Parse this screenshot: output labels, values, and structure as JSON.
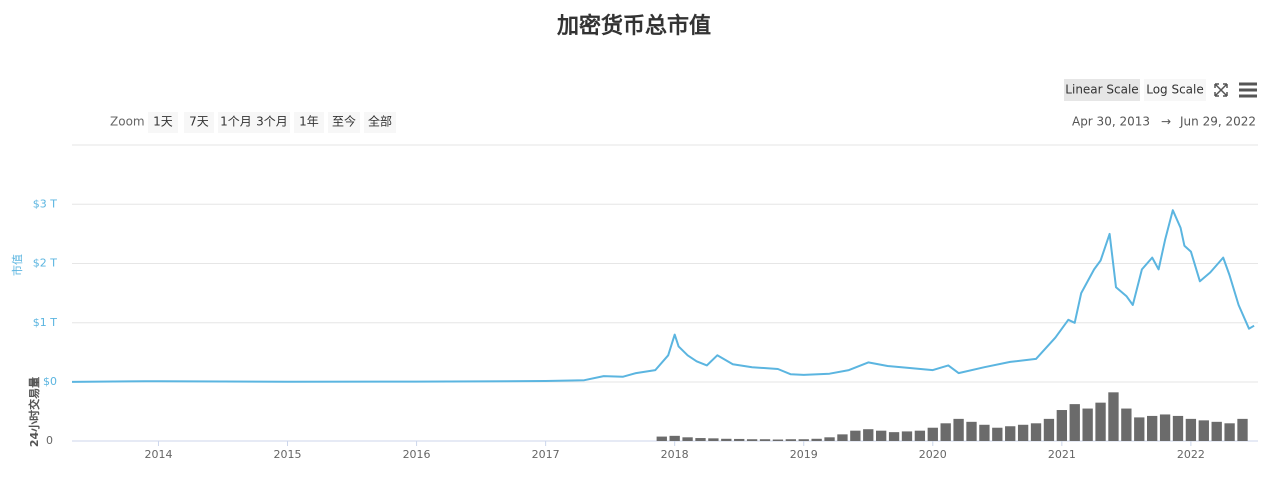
{
  "chart_data": {
    "type": "line",
    "title": "加密货币总市值",
    "scale_buttons": [
      "Linear Scale",
      "Log Scale"
    ],
    "active_scale": 0,
    "range_selector": {
      "label": "Zoom",
      "buttons": [
        "1天",
        "7天",
        "1个月",
        "3个月",
        "1年",
        "至今",
        "全部"
      ]
    },
    "date_range": [
      "Apr 30, 2013",
      "Jun 29, 2022"
    ],
    "ylabel": "市值",
    "y2label": "24小时交易量",
    "xlim": [
      2013.33,
      2022.52
    ],
    "xticks": [
      2014,
      2015,
      2016,
      2017,
      2018,
      2019,
      2020,
      2021,
      2022
    ],
    "ylim": [
      0,
      4
    ],
    "yticks": [
      {
        "value": 0,
        "label": "$0"
      },
      {
        "value": 1,
        "label": "$1 T"
      },
      {
        "value": 2,
        "label": "$2 T"
      },
      {
        "value": 3,
        "label": "$3 T"
      }
    ],
    "y2lim": [
      0,
      400
    ],
    "y2ticks": [
      0
    ],
    "grid": true,
    "series": [
      {
        "type": "line",
        "color": "#5bb5e0",
        "x": [
          2013.33,
          2013.9,
          2014.0,
          2014.5,
          2015,
          2016,
          2016.5,
          2017,
          2017.3,
          2017.45,
          2017.6,
          2017.7,
          2017.85,
          2017.95,
          2018.0,
          2018.03,
          2018.1,
          2018.17,
          2018.25,
          2018.33,
          2018.45,
          2018.6,
          2018.8,
          2018.9,
          2019.0,
          2019.2,
          2019.35,
          2019.5,
          2019.65,
          2019.8,
          2020.0,
          2020.12,
          2020.2,
          2020.4,
          2020.6,
          2020.8,
          2020.95,
          2021.05,
          2021.1,
          2021.15,
          2021.25,
          2021.3,
          2021.37,
          2021.42,
          2021.5,
          2021.55,
          2021.62,
          2021.7,
          2021.75,
          2021.8,
          2021.86,
          2021.92,
          2021.95,
          2022.0,
          2022.07,
          2022.15,
          2022.25,
          2022.3,
          2022.37,
          2022.45,
          2022.49
        ],
        "values": [
          0.002,
          0.013,
          0.012,
          0.009,
          0.004,
          0.006,
          0.01,
          0.017,
          0.03,
          0.1,
          0.09,
          0.15,
          0.2,
          0.45,
          0.8,
          0.6,
          0.45,
          0.35,
          0.28,
          0.45,
          0.3,
          0.25,
          0.22,
          0.13,
          0.12,
          0.14,
          0.2,
          0.33,
          0.27,
          0.24,
          0.2,
          0.28,
          0.15,
          0.25,
          0.34,
          0.39,
          0.75,
          1.05,
          1.0,
          1.5,
          1.9,
          2.05,
          2.5,
          1.6,
          1.45,
          1.3,
          1.9,
          2.1,
          1.9,
          2.4,
          2.9,
          2.6,
          2.3,
          2.2,
          1.7,
          1.85,
          2.1,
          1.8,
          1.3,
          0.9,
          0.95
        ]
      },
      {
        "type": "bar",
        "axis": "y2",
        "color": "#6b6b6b",
        "x": [
          2017.9,
          2018.0,
          2018.1,
          2018.2,
          2018.3,
          2018.4,
          2018.5,
          2018.6,
          2018.7,
          2018.8,
          2018.9,
          2019.0,
          2019.1,
          2019.2,
          2019.3,
          2019.4,
          2019.5,
          2019.6,
          2019.7,
          2019.8,
          2019.9,
          2020.0,
          2020.1,
          2020.2,
          2020.3,
          2020.4,
          2020.5,
          2020.6,
          2020.7,
          2020.8,
          2020.9,
          2021.0,
          2021.1,
          2021.2,
          2021.3,
          2021.4,
          2021.5,
          2021.6,
          2021.7,
          2021.8,
          2021.9,
          2022.0,
          2022.1,
          2022.2,
          2022.3,
          2022.4
        ],
        "values": [
          30,
          35,
          25,
          20,
          18,
          15,
          14,
          12,
          12,
          10,
          12,
          12,
          15,
          25,
          45,
          70,
          80,
          70,
          60,
          65,
          70,
          90,
          120,
          150,
          130,
          110,
          90,
          100,
          110,
          120,
          150,
          210,
          250,
          220,
          260,
          330,
          220,
          160,
          170,
          180,
          170,
          150,
          140,
          130,
          120,
          150
        ]
      }
    ]
  }
}
